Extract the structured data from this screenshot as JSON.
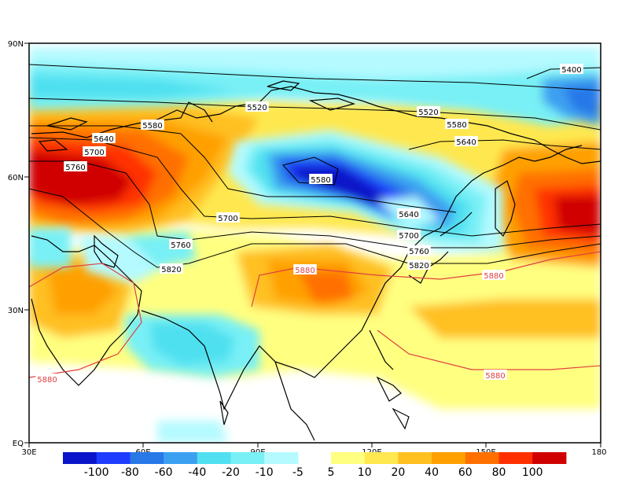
{
  "map": {
    "lat_ticks": [
      "90N",
      "60N",
      "30N",
      "EQ"
    ],
    "lon_ticks": [
      "30E",
      "60E",
      "90E",
      "120E",
      "150E",
      "180"
    ],
    "contour_labels": [
      {
        "text": "5400",
        "color": "#000000"
      },
      {
        "text": "5520",
        "color": "#000000"
      },
      {
        "text": "5520",
        "color": "#000000"
      },
      {
        "text": "5580",
        "color": "#000000"
      },
      {
        "text": "5580",
        "color": "#000000"
      },
      {
        "text": "5580",
        "color": "#000000"
      },
      {
        "text": "5640",
        "color": "#000000"
      },
      {
        "text": "5640",
        "color": "#000000"
      },
      {
        "text": "5640",
        "color": "#000000"
      },
      {
        "text": "5700",
        "color": "#000000"
      },
      {
        "text": "5700",
        "color": "#000000"
      },
      {
        "text": "5700",
        "color": "#000000"
      },
      {
        "text": "5760",
        "color": "#000000"
      },
      {
        "text": "5760",
        "color": "#000000"
      },
      {
        "text": "5760",
        "color": "#000000"
      },
      {
        "text": "5820",
        "color": "#000000"
      },
      {
        "text": "5820",
        "color": "#000000"
      },
      {
        "text": "5880",
        "color": "#e04040"
      },
      {
        "text": "5880",
        "color": "#e04040"
      },
      {
        "text": "5880",
        "color": "#e04040"
      },
      {
        "text": "5880",
        "color": "#e04040"
      }
    ]
  },
  "colorbar": {
    "negative": [
      {
        "label": "-100",
        "color": "#0a14c8"
      },
      {
        "label": "-80",
        "color": "#1e3cff"
      },
      {
        "label": "-60",
        "color": "#2878e8"
      },
      {
        "label": "-40",
        "color": "#3ca0f0"
      },
      {
        "label": "-20",
        "color": "#50e0f0"
      },
      {
        "label": "-10",
        "color": "#78f0f5"
      },
      {
        "label": "-5",
        "color": "#b4faff"
      }
    ],
    "positive": [
      {
        "label": "5",
        "color": "#ffff80"
      },
      {
        "label": "10",
        "color": "#ffe850"
      },
      {
        "label": "20",
        "color": "#ffc020"
      },
      {
        "label": "40",
        "color": "#ffa000"
      },
      {
        "label": "60",
        "color": "#ff7000"
      },
      {
        "label": "80",
        "color": "#ff3000"
      },
      {
        "label": "100",
        "color": "#d00000"
      }
    ]
  },
  "colors": {
    "height_contour": "#000000",
    "contour_5880": "#e04040",
    "coastline": "#000000"
  }
}
